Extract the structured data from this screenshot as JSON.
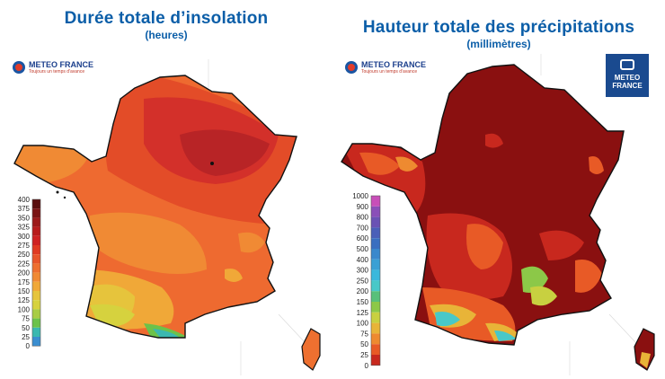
{
  "left_panel": {
    "title": "Durée totale d’insolation",
    "subtitle": "(heures)",
    "legend": {
      "labels": [
        "400",
        "375",
        "350",
        "325",
        "300",
        "275",
        "250",
        "225",
        "200",
        "175",
        "150",
        "125",
        "100",
        "75",
        "50",
        "25",
        "0"
      ],
      "colors": [
        "#5a0f0f",
        "#7a1414",
        "#9c1a1a",
        "#b81c1c",
        "#cf2222",
        "#e03a22",
        "#e8552a",
        "#ee7030",
        "#f08a34",
        "#f0a838",
        "#e6c43c",
        "#d6d23e",
        "#a8cc44",
        "#6cc24a",
        "#3bb8b0",
        "#3b8ed0",
        "#3a5fb8"
      ]
    }
  },
  "right_panel": {
    "title": "Hauteur totale des précipitations",
    "subtitle": "(millimètres)",
    "legend": {
      "labels": [
        "1000",
        "900",
        "800",
        "700",
        "600",
        "500",
        "400",
        "300",
        "250",
        "200",
        "150",
        "125",
        "100",
        "75",
        "50",
        "25",
        "0"
      ],
      "colors": [
        "#c84fb8",
        "#8a4fb8",
        "#6a52b4",
        "#4a5fb8",
        "#3a6fc0",
        "#3a88cc",
        "#3aa0d4",
        "#3ab8dc",
        "#48c8c8",
        "#58c07a",
        "#8cc848",
        "#c8d040",
        "#e8b438",
        "#ee8a30",
        "#e85a26",
        "#c8281e",
        "#8a1010"
      ]
    }
  },
  "logos": {
    "brand": "METEO FRANCE",
    "tagline": "Toujours un temps d'avance",
    "badge_line1": "METEO",
    "badge_line2": "FRANCE"
  }
}
